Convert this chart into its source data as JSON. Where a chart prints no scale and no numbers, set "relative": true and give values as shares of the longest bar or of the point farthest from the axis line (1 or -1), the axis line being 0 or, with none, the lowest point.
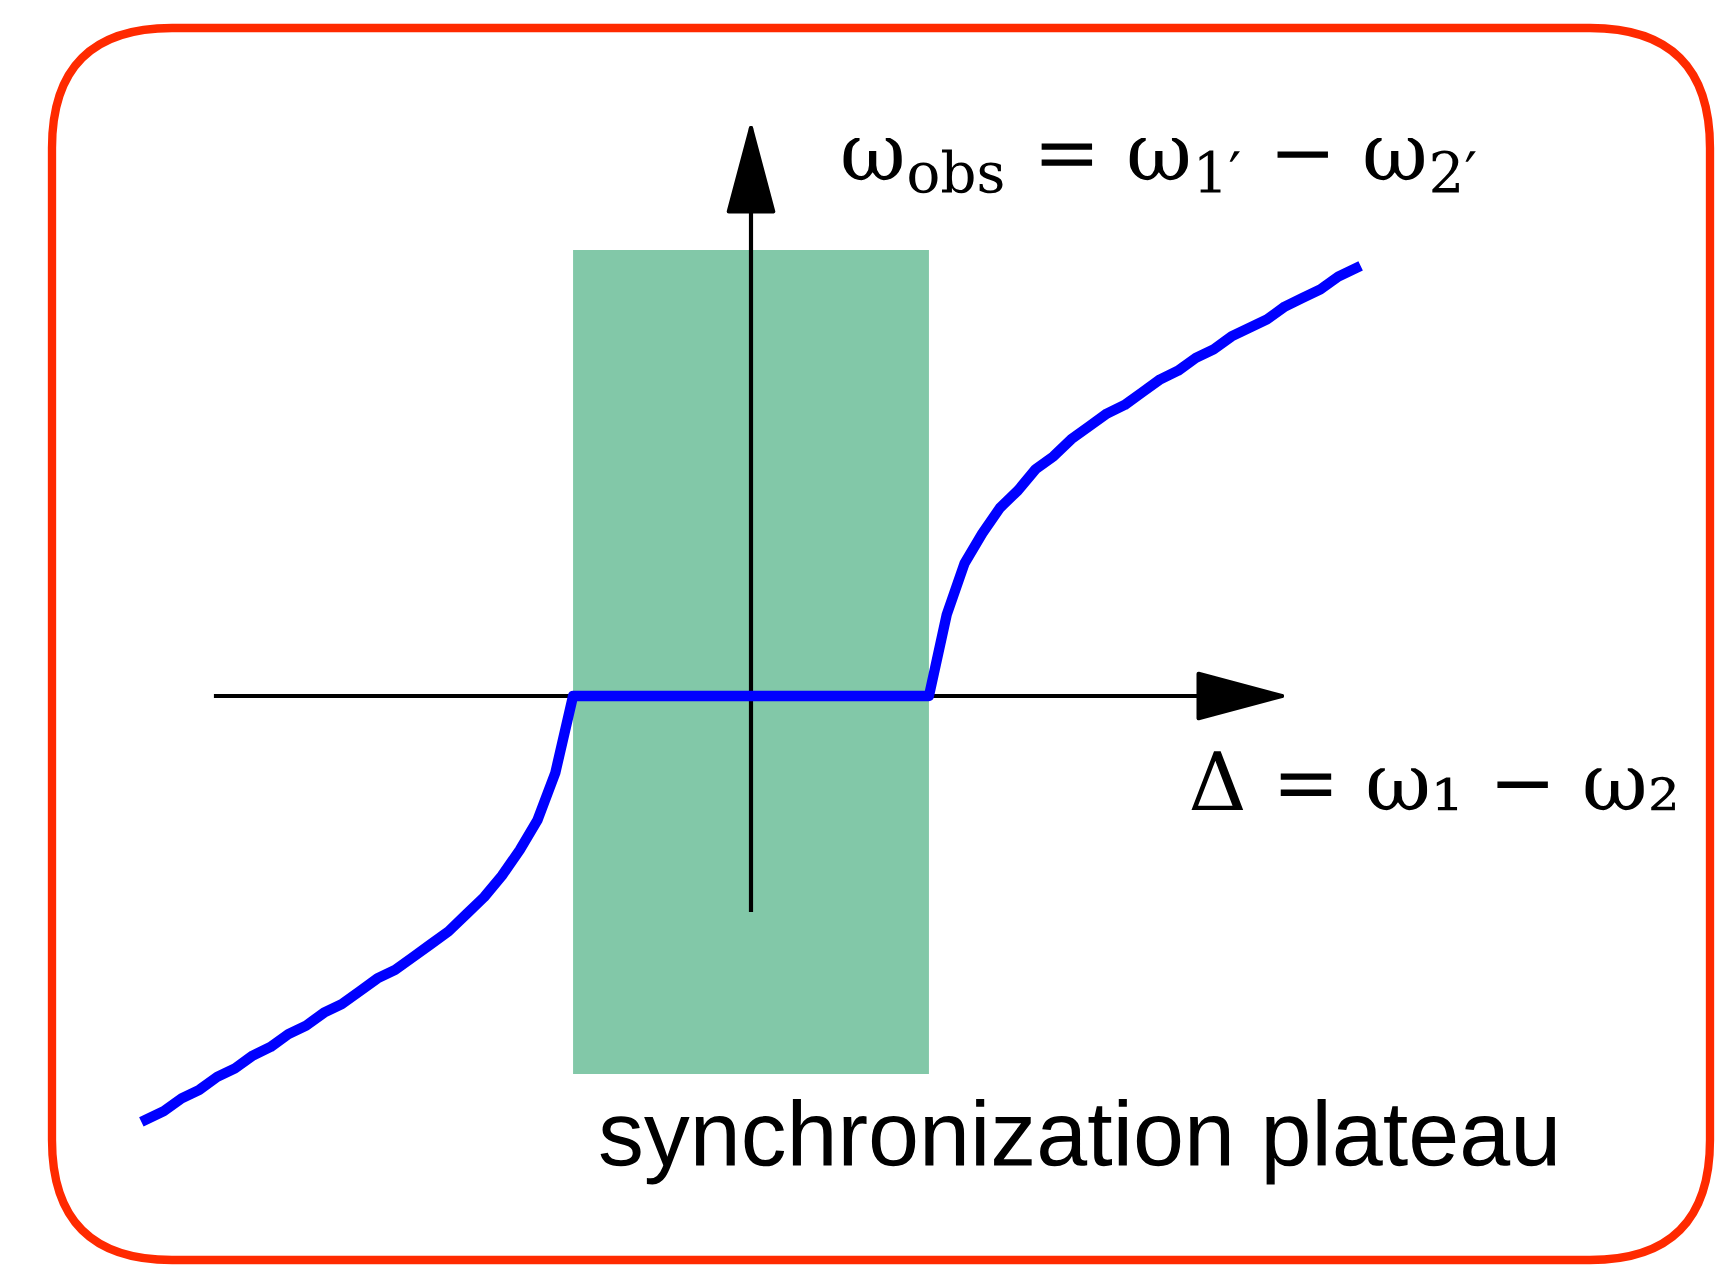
{
  "chart_data": {
    "type": "line",
    "relative": true,
    "xlabel": "Δ = ω₁ − ω₂",
    "ylabel": "ω$_{obs}$ = ω$_{1′}$ − ω$_{2′}$",
    "categories": [
      null,
      null,
      null,
      null,
      null,
      null,
      null,
      null,
      null,
      null,
      null,
      null,
      null,
      null,
      null,
      null,
      null,
      null,
      null,
      null,
      null,
      null,
      null,
      null,
      null,
      null,
      null,
      null,
      null,
      null,
      null,
      null,
      null,
      null,
      null,
      null,
      null,
      null,
      null,
      null,
      null,
      null,
      null,
      null,
      null,
      null,
      null,
      null,
      null,
      null,
      null,
      null,
      null,
      null,
      null,
      null,
      null,
      null,
      null,
      null,
      null,
      null,
      null,
      null,
      null,
      null,
      null,
      null,
      null
    ],
    "series": [
      {
        "color": "#0000ff",
        "values": [
          -0.99,
          -0.97,
          -0.94,
          -0.92,
          -0.89,
          -0.87,
          -0.84,
          -0.82,
          -0.79,
          -0.77,
          -0.74,
          -0.72,
          -0.69,
          -0.66,
          -0.64,
          -0.61,
          -0.58,
          -0.55,
          -0.51,
          -0.47,
          -0.42,
          -0.36,
          -0.29,
          -0.18,
          0,
          0,
          0,
          0,
          0,
          0,
          0,
          0,
          0,
          0,
          0,
          0,
          0,
          0,
          0,
          0,
          0,
          0,
          0,
          0,
          0,
          0.19,
          0.31,
          0.38,
          0.44,
          0.48,
          0.53,
          0.56,
          0.6,
          0.63,
          0.66,
          0.68,
          0.71,
          0.74,
          0.76,
          0.79,
          0.81,
          0.84,
          0.86,
          0.88,
          0.91,
          0.93,
          0.95,
          0.98,
          1
        ]
      }
    ],
    "annotations": [
      "synchronization plateau"
    ],
    "marker": "none",
    "line_style": "solid"
  }
}
